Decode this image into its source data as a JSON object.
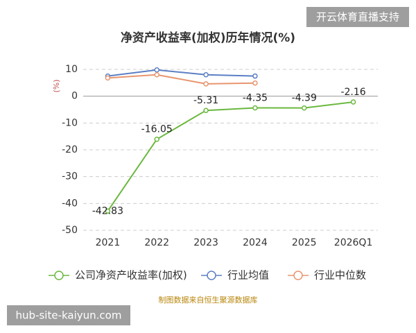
{
  "chart_data": {
    "type": "line",
    "title": "净资产收益率(加权)历年情况(%)",
    "y_label": "(%)",
    "categories": [
      "2021",
      "2022",
      "2023",
      "2024",
      "2025",
      "2026Q1"
    ],
    "series": [
      {
        "name": "公司净资产收益率(加权)",
        "color": "#6ab83e",
        "values": [
          -42.83,
          -16.05,
          -5.31,
          -4.35,
          -4.39,
          -2.16
        ],
        "show_labels": true
      },
      {
        "name": "行业均值",
        "color": "#5b7fc4",
        "values": [
          7.5,
          9.8,
          8.0,
          7.5,
          null,
          null
        ]
      },
      {
        "name": "行业中位数",
        "color": "#e8956e",
        "values": [
          6.8,
          8.0,
          4.6,
          4.9,
          null,
          null
        ]
      }
    ],
    "ylim": [
      -50,
      10
    ],
    "yticks": [
      10,
      0,
      -10,
      -20,
      -30,
      -40,
      -50
    ],
    "grid": true,
    "source": "制图数据来自恒生聚源数据库",
    "watermarks": [
      "开云体育直播支持",
      "hub-site-kaiyun.com"
    ]
  }
}
